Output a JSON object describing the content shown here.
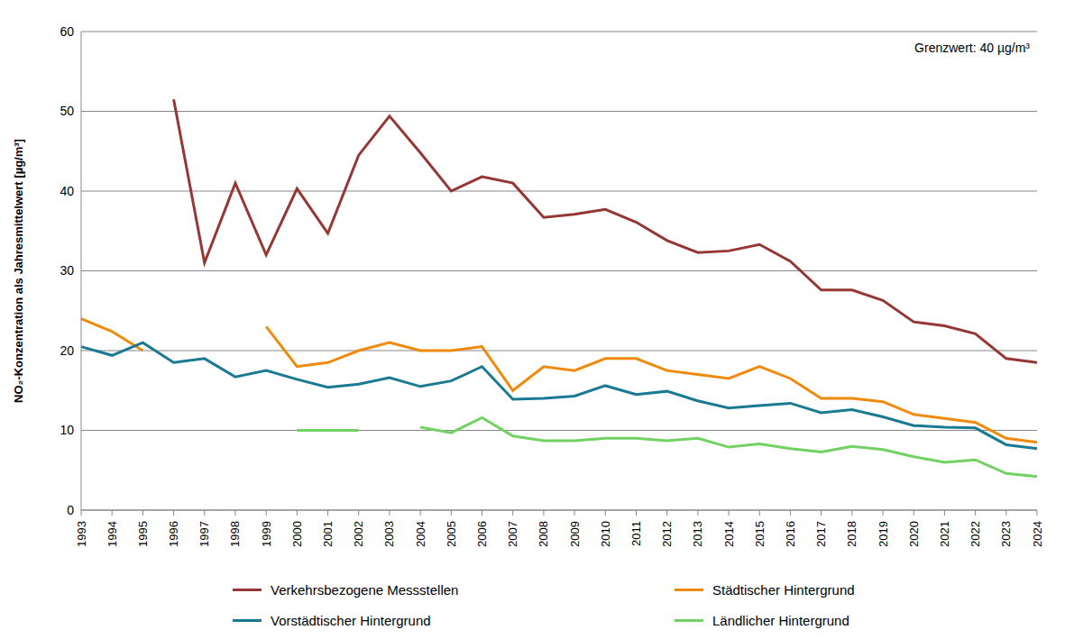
{
  "chart_data": {
    "type": "line",
    "y_label": "NO₂-Konzentration als Jahresmittelwert [µg/m³]",
    "annotation": "Grenzwert: 40 µg/m³",
    "categories": [
      "1993",
      "1994",
      "1995",
      "1996",
      "1997",
      "1998",
      "1999",
      "2000",
      "2001",
      "2002",
      "2003",
      "2004",
      "2005",
      "2006",
      "2007",
      "2008",
      "2009",
      "2010",
      "2011",
      "2012",
      "2013",
      "2014",
      "2015",
      "2016",
      "2017",
      "2018",
      "2019",
      "2020",
      "2021",
      "2022",
      "2023",
      "2024"
    ],
    "series": [
      {
        "name": "Verkehrsbezogene Messstellen",
        "color": "#953735",
        "values": [
          null,
          null,
          null,
          51.5,
          31,
          41,
          32,
          40.3,
          34.7,
          44.5,
          49.4,
          44.8,
          40,
          41.8,
          41,
          36.7,
          37.1,
          37.7,
          36.1,
          33.8,
          32.3,
          32.5,
          33.3,
          31.2,
          27.6,
          27.6,
          26.3,
          23.6,
          23.1,
          22.1,
          19,
          18.5
        ]
      },
      {
        "name": "Städtischer Hintergrund",
        "color": "#f08a0c",
        "values": [
          24,
          22.4,
          20,
          null,
          null,
          null,
          23,
          18,
          18.5,
          20,
          21,
          20,
          20,
          20.5,
          15,
          18,
          17.5,
          19,
          19,
          17.5,
          17,
          16.5,
          18,
          16.5,
          14,
          14,
          13.6,
          12,
          11.5,
          11,
          9,
          8.5
        ]
      },
      {
        "name": "Vorstädtischer Hintergrund",
        "color": "#1b7a93",
        "values": [
          20.5,
          19.4,
          21,
          18.5,
          19,
          16.7,
          17.5,
          16.4,
          15.4,
          15.8,
          16.6,
          15.5,
          16.2,
          18,
          13.9,
          14,
          14.3,
          15.6,
          14.5,
          14.9,
          13.7,
          12.8,
          13.1,
          13.4,
          12.2,
          12.6,
          11.7,
          10.6,
          10.4,
          10.3,
          8.2,
          7.7
        ]
      },
      {
        "name": "Ländlicher Hintergrund",
        "color": "#72d163",
        "values": [
          null,
          null,
          null,
          null,
          null,
          null,
          null,
          10,
          10,
          10,
          null,
          10.4,
          9.7,
          11.6,
          9.3,
          8.7,
          8.7,
          9,
          9,
          8.7,
          9,
          7.9,
          8.3,
          7.7,
          7.3,
          8,
          7.6,
          6.7,
          6,
          6.3,
          4.6,
          4.2
        ]
      }
    ],
    "ylim": [
      0,
      60
    ],
    "yticks": [
      0,
      10,
      20,
      30,
      40,
      50,
      60
    ],
    "grid": true,
    "legend": "bottom"
  }
}
